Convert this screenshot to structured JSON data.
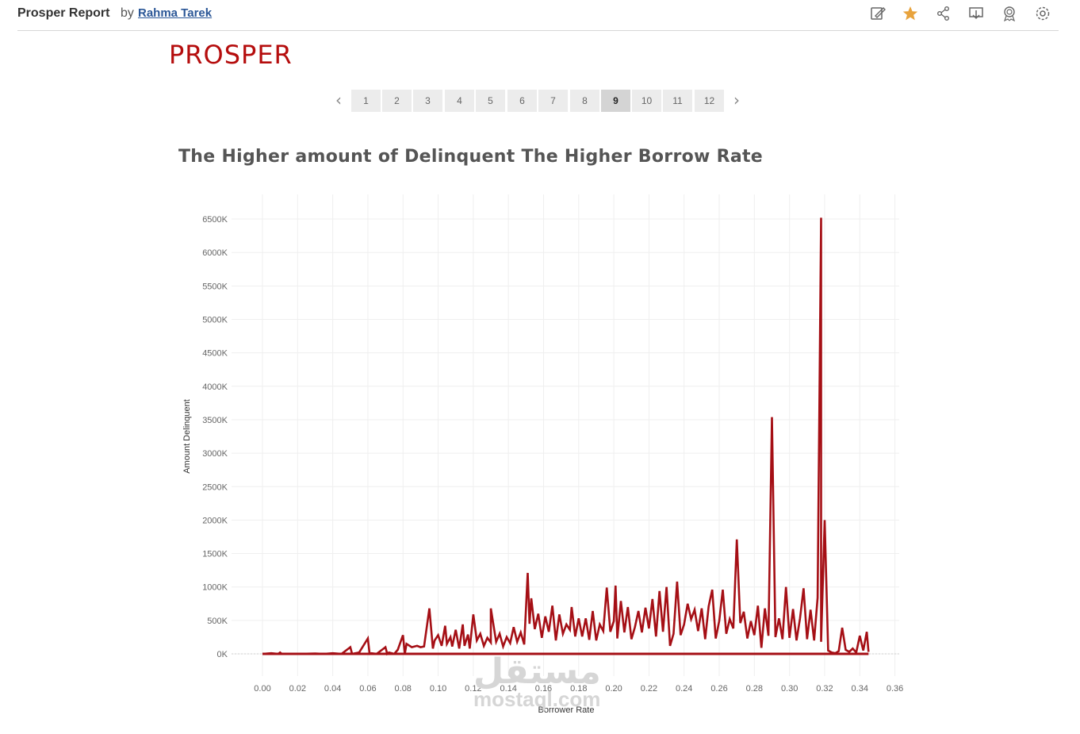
{
  "header": {
    "report_title": "Prosper Report",
    "by": "by",
    "author": "Rahma Tarek",
    "icons": [
      "edit-icon",
      "star-icon",
      "share-icon",
      "download-icon",
      "award-icon",
      "settings-icon"
    ]
  },
  "brand": "PROSPER",
  "pager": {
    "pages": [
      "1",
      "2",
      "3",
      "4",
      "5",
      "6",
      "7",
      "8",
      "9",
      "10",
      "11",
      "12"
    ],
    "active": "9",
    "prev_icon": "chevron-left-icon",
    "next_icon": "chevron-right-icon"
  },
  "watermark": {
    "arabic": "مستقل",
    "latin": "mostaql.com"
  },
  "colors": {
    "series": "#a50f15",
    "brand": "#b50d0d",
    "star": "#e8a33d",
    "link": "#2b5797"
  },
  "chart_data": {
    "type": "line",
    "title": "The Higher amount of Delinquent The Higher Borrow Rate",
    "xlabel": "Borrower Rate",
    "ylabel": "Amount Delinquent",
    "xlim": [
      -0.017,
      0.363
    ],
    "ylim": [
      -350000,
      6850000
    ],
    "xticks": [
      "0.00",
      "0.02",
      "0.04",
      "0.06",
      "0.08",
      "0.10",
      "0.12",
      "0.14",
      "0.16",
      "0.18",
      "0.20",
      "0.22",
      "0.24",
      "0.26",
      "0.28",
      "0.30",
      "0.32",
      "0.34",
      "0.36"
    ],
    "xtick_values": [
      0,
      0.02,
      0.04,
      0.06,
      0.08,
      0.1,
      0.12,
      0.14,
      0.16,
      0.18,
      0.2,
      0.22,
      0.24,
      0.26,
      0.28,
      0.3,
      0.32,
      0.34,
      0.36
    ],
    "yticks": [
      "0K",
      "500K",
      "1000K",
      "1500K",
      "2000K",
      "2500K",
      "3000K",
      "3500K",
      "4000K",
      "4500K",
      "5000K",
      "5500K",
      "6000K",
      "6500K"
    ],
    "ytick_values": [
      0,
      500000,
      1000000,
      1500000,
      2000000,
      2500000,
      3000000,
      3500000,
      4000000,
      4500000,
      5000000,
      5500000,
      6000000,
      6500000
    ],
    "grid": true,
    "series": [
      {
        "x": [
          0.0,
          0.005,
          0.009,
          0.01,
          0.011,
          0.02,
          0.03,
          0.035,
          0.04,
          0.045,
          0.05,
          0.051,
          0.055,
          0.06,
          0.061,
          0.062,
          0.065,
          0.07,
          0.071,
          0.072,
          0.075,
          0.077,
          0.08,
          0.081,
          0.082,
          0.085,
          0.088,
          0.09,
          0.092,
          0.095,
          0.097,
          0.098,
          0.1,
          0.102,
          0.104,
          0.105,
          0.107,
          0.108,
          0.11,
          0.112,
          0.114,
          0.115,
          0.117,
          0.118,
          0.12,
          0.122,
          0.124,
          0.126,
          0.128,
          0.13,
          0.13,
          0.133,
          0.135,
          0.137,
          0.139,
          0.141,
          0.143,
          0.145,
          0.147,
          0.149,
          0.151,
          0.152,
          0.153,
          0.155,
          0.157,
          0.159,
          0.161,
          0.163,
          0.165,
          0.167,
          0.169,
          0.171,
          0.173,
          0.175,
          0.176,
          0.178,
          0.18,
          0.182,
          0.184,
          0.186,
          0.188,
          0.19,
          0.192,
          0.194,
          0.196,
          0.198,
          0.2,
          0.201,
          0.202,
          0.204,
          0.206,
          0.208,
          0.21,
          0.212,
          0.214,
          0.216,
          0.218,
          0.22,
          0.222,
          0.224,
          0.226,
          0.228,
          0.23,
          0.232,
          0.234,
          0.236,
          0.238,
          0.24,
          0.242,
          0.244,
          0.246,
          0.248,
          0.25,
          0.252,
          0.254,
          0.256,
          0.258,
          0.26,
          0.262,
          0.264,
          0.266,
          0.268,
          0.27,
          0.272,
          0.274,
          0.276,
          0.278,
          0.28,
          0.282,
          0.284,
          0.286,
          0.288,
          0.29,
          0.292,
          0.294,
          0.296,
          0.298,
          0.3,
          0.302,
          0.304,
          0.306,
          0.308,
          0.31,
          0.312,
          0.314,
          0.316,
          0.318,
          0.318,
          0.32,
          0.322,
          0.324,
          0.326,
          0.328,
          0.33,
          0.332,
          0.334,
          0.336,
          0.338,
          0.34,
          0.342,
          0.344,
          0.345
        ],
        "y": [
          0,
          10000,
          0,
          20000,
          0,
          0,
          5000,
          0,
          10000,
          0,
          100000,
          0,
          20000,
          230000,
          0,
          10000,
          0,
          100000,
          0,
          20000,
          0,
          60000,
          280000,
          0,
          150000,
          100000,
          120000,
          100000,
          110000,
          680000,
          80000,
          200000,
          280000,
          120000,
          420000,
          150000,
          250000,
          110000,
          360000,
          80000,
          440000,
          120000,
          290000,
          80000,
          590000,
          200000,
          300000,
          120000,
          240000,
          170000,
          680000,
          180000,
          300000,
          110000,
          250000,
          160000,
          400000,
          180000,
          320000,
          140000,
          1210000,
          450000,
          830000,
          370000,
          600000,
          240000,
          560000,
          330000,
          720000,
          200000,
          590000,
          300000,
          440000,
          360000,
          700000,
          260000,
          530000,
          260000,
          530000,
          210000,
          640000,
          200000,
          440000,
          340000,
          990000,
          330000,
          490000,
          1020000,
          230000,
          790000,
          320000,
          700000,
          220000,
          400000,
          640000,
          320000,
          690000,
          380000,
          820000,
          260000,
          940000,
          330000,
          1000000,
          120000,
          300000,
          1080000,
          280000,
          440000,
          750000,
          520000,
          660000,
          340000,
          680000,
          220000,
          710000,
          960000,
          230000,
          490000,
          960000,
          300000,
          520000,
          380000,
          1710000,
          460000,
          630000,
          230000,
          490000,
          280000,
          720000,
          90000,
          680000,
          270000,
          3540000,
          250000,
          530000,
          220000,
          1000000,
          240000,
          670000,
          200000,
          530000,
          980000,
          220000,
          660000,
          200000,
          840000,
          6520000,
          180000,
          2000000,
          50000,
          20000,
          10000,
          40000,
          390000,
          60000,
          30000,
          80000,
          20000,
          270000,
          50000,
          330000,
          30000
        ]
      }
    ]
  }
}
